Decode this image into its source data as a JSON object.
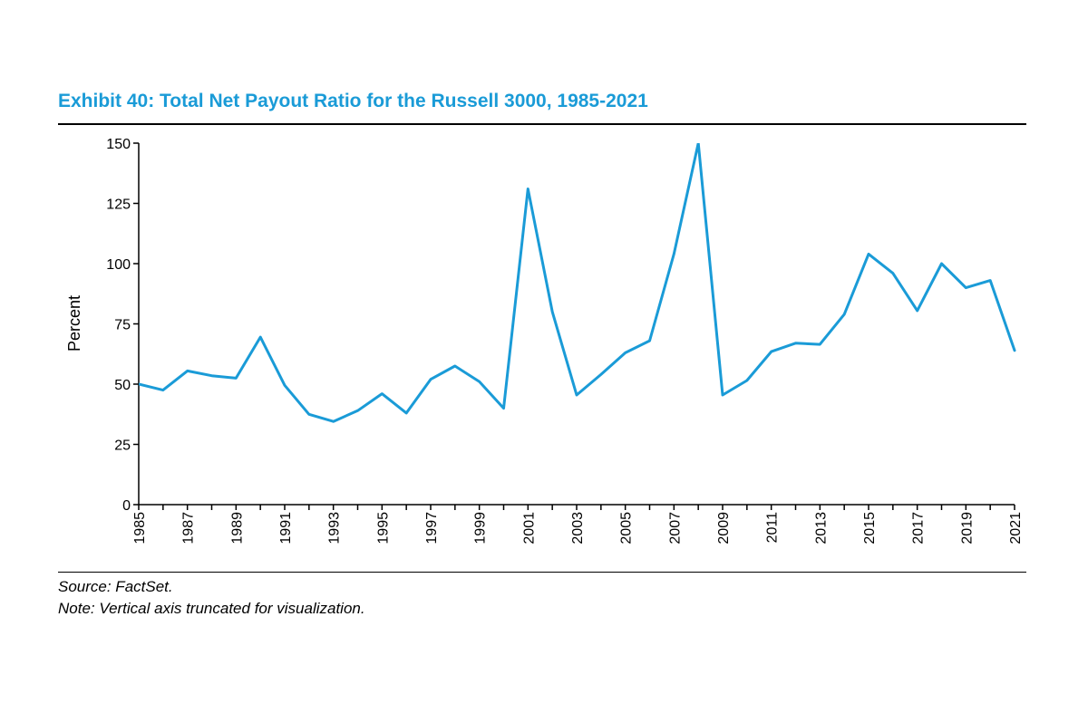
{
  "exhibit": {
    "title": "Exhibit 40: Total Net Payout Ratio for the Russell 3000, 1985-2021"
  },
  "footer": {
    "source": "Source: FactSet.",
    "note": "Note: Vertical axis truncated for visualization."
  },
  "colors": {
    "title": "#1a9bd7",
    "series": "#1a9bd7",
    "axis": "#000000"
  },
  "chart_data": {
    "type": "line",
    "title": "Exhibit 40: Total Net Payout Ratio for the Russell 3000, 1985-2021",
    "xlabel": "",
    "ylabel": "Percent",
    "xlim": [
      1985,
      2021
    ],
    "ylim": [
      0,
      150
    ],
    "y_ticks": [
      0,
      25,
      50,
      75,
      100,
      125,
      150
    ],
    "x_ticks": [
      1985,
      1987,
      1989,
      1991,
      1993,
      1995,
      1997,
      1999,
      2001,
      2003,
      2005,
      2007,
      2009,
      2011,
      2013,
      2015,
      2017,
      2019,
      2021
    ],
    "grid": false,
    "legend": "none",
    "note": "Vertical axis truncated for visualization.",
    "series": [
      {
        "x": [
          1985,
          1986,
          1987,
          1988,
          1989,
          1990,
          1991,
          1992,
          1993,
          1994,
          1995,
          1996,
          1997,
          1998,
          1999,
          2000,
          2001,
          2002,
          2003,
          2004,
          2005,
          2006,
          2007,
          2008,
          2009,
          2010,
          2011,
          2012,
          2013,
          2014,
          2015,
          2016,
          2017,
          2018,
          2019,
          2020,
          2021
        ],
        "values": [
          50,
          47.5,
          55.5,
          53.5,
          52.5,
          69.5,
          49.5,
          37.5,
          34.5,
          39,
          46,
          38,
          52,
          57.5,
          51,
          40,
          131,
          80,
          45.5,
          54,
          63,
          68,
          104,
          150,
          45.5,
          51.5,
          63.5,
          67,
          66.5,
          79,
          104,
          96,
          80.5,
          100,
          90,
          93,
          64
        ]
      }
    ]
  }
}
